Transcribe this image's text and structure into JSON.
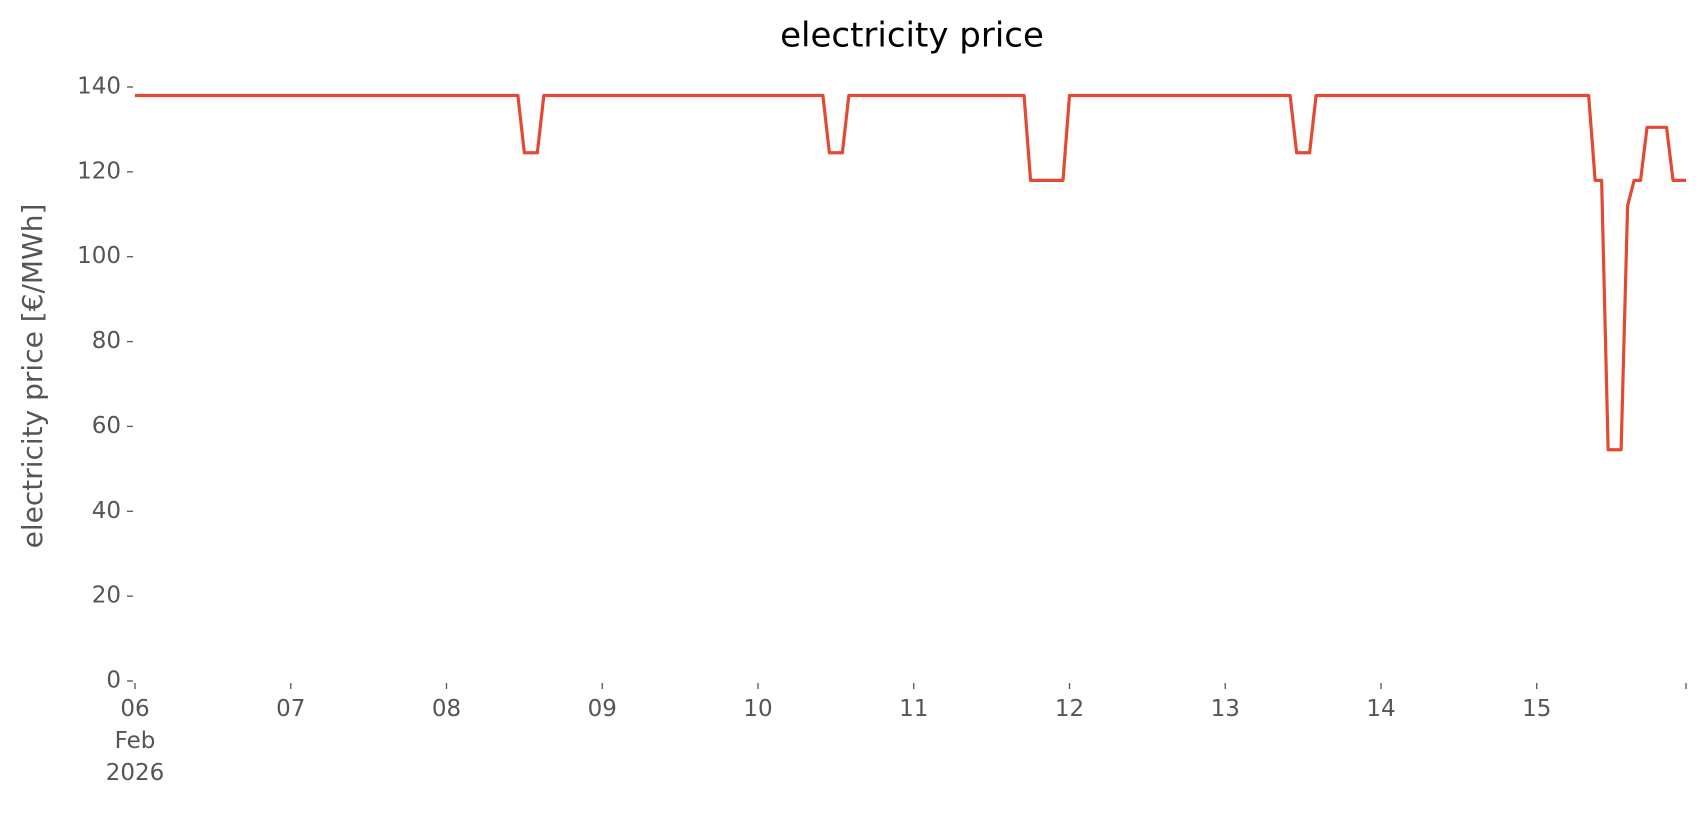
{
  "chart_data": {
    "type": "line",
    "title": "electricity price",
    "ylabel": "electricity price [€/MWh]",
    "x": [
      "2026-02-06T00:00",
      "2026-02-08T11:00",
      "2026-02-08T12:00",
      "2026-02-08T14:00",
      "2026-02-08T15:00",
      "2026-02-10T10:00",
      "2026-02-10T11:00",
      "2026-02-10T13:00",
      "2026-02-10T14:00",
      "2026-02-11T17:00",
      "2026-02-11T18:00",
      "2026-02-11T23:00",
      "2026-02-12T00:00",
      "2026-02-13T10:00",
      "2026-02-13T11:00",
      "2026-02-13T13:00",
      "2026-02-13T14:00",
      "2026-02-15T08:00",
      "2026-02-15T09:00",
      "2026-02-15T10:00",
      "2026-02-15T11:00",
      "2026-02-15T13:00",
      "2026-02-15T14:00",
      "2026-02-15T15:00",
      "2026-02-15T16:00",
      "2026-02-15T17:00",
      "2026-02-15T20:00",
      "2026-02-15T21:00",
      "2026-02-15T23:00"
    ],
    "series": [
      {
        "name": "electricity price",
        "color": "#e24a33",
        "values": [
          138,
          138,
          124.5,
          124.5,
          138,
          138,
          124.5,
          124.5,
          138,
          138,
          118,
          118,
          138,
          138,
          124.5,
          124.5,
          138,
          138,
          118,
          118,
          54.5,
          54.5,
          112,
          118,
          118,
          130.5,
          130.5,
          118,
          118
        ]
      }
    ],
    "xlim": [
      "2026-02-06T00:00",
      "2026-02-15T23:00"
    ],
    "xticks": [
      {
        "value": "2026-02-06T00:00",
        "label": "06\nFeb\n2026"
      },
      {
        "value": "2026-02-07T00:00",
        "label": "07"
      },
      {
        "value": "2026-02-08T00:00",
        "label": "08"
      },
      {
        "value": "2026-02-09T00:00",
        "label": "09"
      },
      {
        "value": "2026-02-10T00:00",
        "label": "10"
      },
      {
        "value": "2026-02-11T00:00",
        "label": "11"
      },
      {
        "value": "2026-02-12T00:00",
        "label": "12"
      },
      {
        "value": "2026-02-13T00:00",
        "label": "13"
      },
      {
        "value": "2026-02-14T00:00",
        "label": "14"
      },
      {
        "value": "2026-02-15T00:00",
        "label": "15"
      }
    ],
    "ylim": [
      0,
      140
    ],
    "yticks": [
      0,
      20,
      40,
      60,
      80,
      100,
      120,
      140
    ],
    "grid": false
  }
}
